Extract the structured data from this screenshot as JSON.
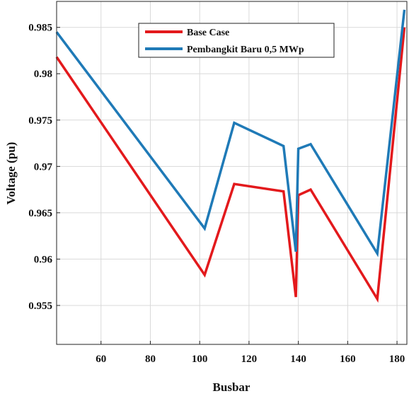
{
  "chart_data": {
    "type": "line",
    "xlabel": "Busbar",
    "ylabel": "Voltage (pu)",
    "xlim": [
      42,
      184
    ],
    "ylim": [
      0.9508,
      0.9878
    ],
    "xticks": [
      60,
      80,
      100,
      120,
      140,
      160,
      180
    ],
    "yticks": [
      0.955,
      0.96,
      0.965,
      0.97,
      0.975,
      0.98,
      0.985
    ],
    "ytick_labels": [
      "0.955",
      "0.96",
      "0.965",
      "0.97",
      "0.975",
      "0.98",
      "0.985"
    ],
    "grid": true,
    "legend_position": "top",
    "series": [
      {
        "name": "Base Case",
        "color": "#e3191c",
        "x": [
          42,
          102,
          114,
          134,
          139,
          140,
          145,
          172,
          183
        ],
        "y": [
          0.9818,
          0.9583,
          0.9681,
          0.9673,
          0.9559,
          0.9669,
          0.9675,
          0.9557,
          0.985
        ]
      },
      {
        "name": "Pembangkit Baru 0,5 MWp",
        "color": "#1f7ab7",
        "x": [
          42,
          102,
          114,
          134,
          139,
          140,
          145,
          172,
          183
        ],
        "y": [
          0.9845,
          0.9633,
          0.9747,
          0.9722,
          0.9608,
          0.9719,
          0.9724,
          0.9606,
          0.9869
        ]
      }
    ]
  }
}
